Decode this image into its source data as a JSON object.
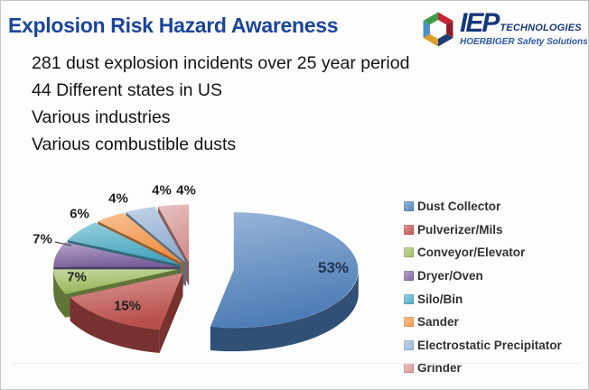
{
  "slide": {
    "title": "Explosion Risk Hazard Awareness",
    "title_color": "#1B459B",
    "bullets": [
      "281 dust explosion incidents over 25 year period",
      "44 Different states in US",
      "Various industries",
      "Various combustible dusts"
    ]
  },
  "logo": {
    "name": "IEP",
    "suffix": "TECHNOLOGIES",
    "tagline": "HOERBIGER Safety Solutions",
    "text_color": "#16387C",
    "tagline_color": "#2B57A8",
    "hex_segments": [
      {
        "side": "top-right",
        "color": "#C32430"
      },
      {
        "side": "right",
        "color": "#8B1E2C"
      },
      {
        "side": "bottom-right",
        "color": "#1D3C74"
      },
      {
        "side": "bottom-left",
        "color": "#E09C2E"
      },
      {
        "side": "left",
        "color": "#4A8FC2"
      },
      {
        "side": "top-left",
        "color": "#3E9B49"
      }
    ]
  },
  "chart_data": {
    "type": "pie",
    "style": "3d-exploded",
    "title": "",
    "legend_position": "right",
    "label_format": "percent",
    "series": [
      {
        "name": "Dust Collector",
        "value": 53,
        "color": "#4F81BD"
      },
      {
        "name": "Pulverizer/Mils",
        "value": 15,
        "color": "#C0504D"
      },
      {
        "name": "Conveyor/Elevator",
        "value": 7,
        "color": "#9BBB59"
      },
      {
        "name": "Dryer/Oven",
        "value": 7,
        "color": "#8064A2"
      },
      {
        "name": "Silo/Bin",
        "value": 6,
        "color": "#4BACC6"
      },
      {
        "name": "Sander",
        "value": 4,
        "color": "#F79646"
      },
      {
        "name": "Electrostatic Precipitator",
        "value": 4,
        "color": "#95B3D7"
      },
      {
        "name": "Grinder",
        "value": 4,
        "color": "#D99694"
      }
    ]
  }
}
